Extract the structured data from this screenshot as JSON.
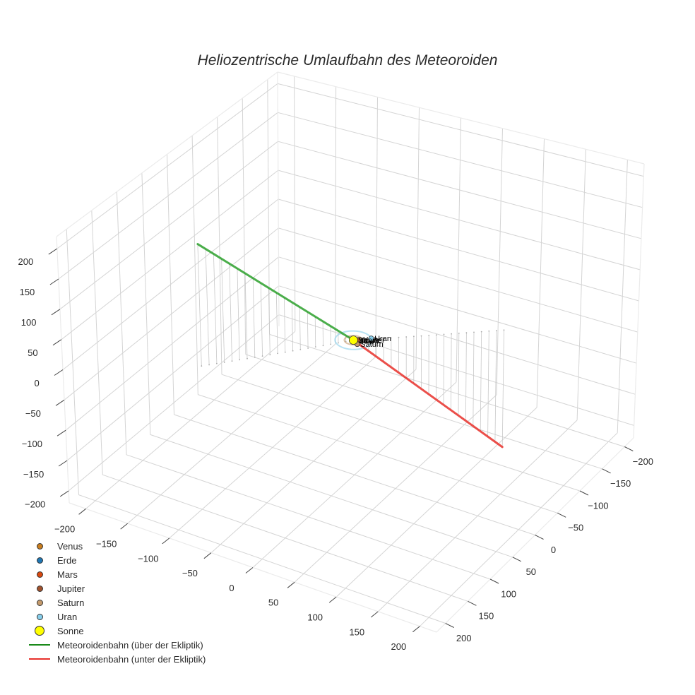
{
  "chart_data": {
    "type": "scatter3d",
    "title": "Heliozentrische Umlaufbahn des Meteoroiden",
    "axes": {
      "x": {
        "label": "",
        "range": [
          -220,
          220
        ],
        "ticks": [
          -200,
          -150,
          -100,
          -50,
          0,
          50,
          100,
          150,
          200
        ],
        "tick_labels": [
          "−200",
          "−150",
          "−100",
          "−50",
          "0",
          "50",
          "100",
          "150",
          "200"
        ]
      },
      "y": {
        "label": "",
        "range": [
          -220,
          220
        ],
        "ticks": [
          -200,
          -150,
          -100,
          -50,
          0,
          50,
          100,
          150,
          200
        ],
        "tick_labels": [
          "−200",
          "−150",
          "−100",
          "−50",
          "0",
          "50",
          "100",
          "150",
          "200"
        ]
      },
      "z": {
        "label": "",
        "range": [
          -220,
          220
        ],
        "ticks": [
          -200,
          -150,
          -100,
          -50,
          0,
          50,
          100,
          150,
          200
        ],
        "tick_labels": [
          "−200",
          "−150",
          "−100",
          "−50",
          "0",
          "50",
          "100",
          "150",
          "200"
        ]
      },
      "grid": true
    },
    "series": [
      {
        "name": "Venus",
        "kind": "marker",
        "color": "#c87d1e",
        "x": 0.5,
        "y": -0.5,
        "z": 0.0,
        "label": "Venus"
      },
      {
        "name": "Erde",
        "kind": "marker",
        "color": "#1f77b4",
        "x": -0.8,
        "y": -0.6,
        "z": 0.0,
        "label": "Erde"
      },
      {
        "name": "Mars",
        "kind": "marker",
        "color": "#d9480f",
        "x": 1.2,
        "y": 0.9,
        "z": 0.0,
        "label": "Mars"
      },
      {
        "name": "Jupiter",
        "kind": "marker",
        "color": "#a0522d",
        "x": 4.0,
        "y": -3.0,
        "z": 0.0,
        "label": "Jupiter"
      },
      {
        "name": "Saturn",
        "kind": "marker",
        "color": "#c49a6c",
        "x": 7.5,
        "y": 5.0,
        "z": 0.0,
        "label": "Saturn",
        "orbit_radius": 9.5
      },
      {
        "name": "Uran",
        "kind": "marker",
        "color": "#87ceeb",
        "x": 14.0,
        "y": -13.0,
        "z": 0.0,
        "label": "Uran",
        "orbit_radius": 19.2
      },
      {
        "name": "Sonne",
        "kind": "marker",
        "color": "#ffff00",
        "x": 0,
        "y": 0,
        "z": 0,
        "label": "Sonne",
        "size": "large"
      },
      {
        "name": "Meteoroidenbahn (über der Ekliptik)",
        "kind": "line",
        "color": "#2ca02c",
        "start": [
          -106,
          132,
          200
        ],
        "end": [
          0,
          0,
          0
        ],
        "drop_lines": true
      },
      {
        "name": "Meteoroidenbahn (unter der Ekliptik)",
        "kind": "line",
        "color": "#e8302a",
        "start": [
          0,
          0,
          0
        ],
        "end": [
          125,
          -99,
          -189
        ],
        "drop_lines": true
      }
    ],
    "legend_position": "bottom-left",
    "view_corners": {
      "x0y1z0": [
        98,
        712
      ],
      "x1y1z0": [
        618,
        895
      ],
      "x1y0z0": [
        897,
        620
      ],
      "x0y0z0": [
        395,
        462
      ],
      "x0y1z1": [
        80,
        335
      ],
      "x1y1z1": [
        610,
        495
      ],
      "x1y0z1": [
        912,
        232
      ],
      "x0y0z1": [
        393,
        102
      ]
    }
  },
  "legend": {
    "items": [
      {
        "label": "Venus",
        "type": "dot",
        "color": "#c87d1e",
        "size": 9
      },
      {
        "label": "Erde",
        "type": "dot",
        "color": "#1f77b4",
        "size": 9
      },
      {
        "label": "Mars",
        "type": "dot",
        "color": "#d9480f",
        "size": 9
      },
      {
        "label": "Jupiter",
        "type": "dot",
        "color": "#a0522d",
        "size": 9
      },
      {
        "label": "Saturn",
        "type": "dot",
        "color": "#c49a6c",
        "size": 9
      },
      {
        "label": "Uran",
        "type": "dot",
        "color": "#87ceeb",
        "size": 9
      },
      {
        "label": "Sonne",
        "type": "dot",
        "color": "#ffff00",
        "size": 14
      },
      {
        "label": "Meteoroidenbahn (über der Ekliptik)",
        "type": "line",
        "color": "#1a8a1a"
      },
      {
        "label": "Meteoroidenbahn (unter der Ekliptik)",
        "type": "line",
        "color": "#e8302a"
      }
    ]
  }
}
